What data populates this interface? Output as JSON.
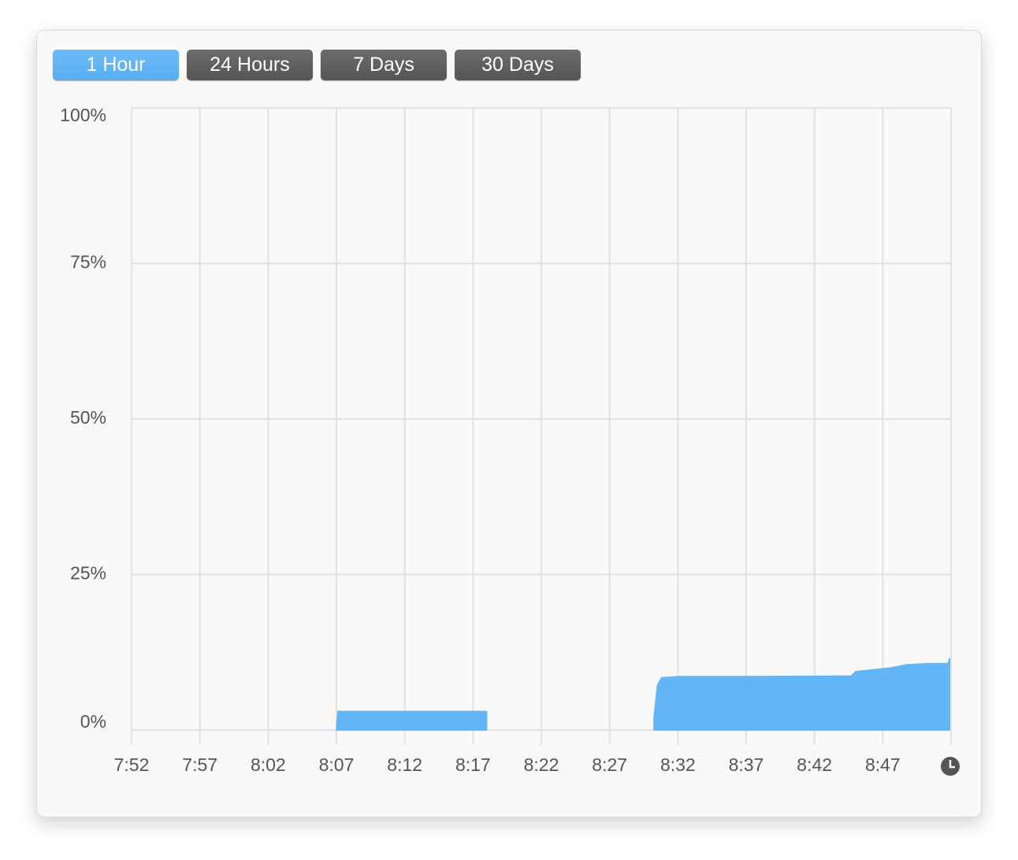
{
  "buttons": [
    "1 Hour",
    "24 Hours",
    "7 Days",
    "30 Days"
  ],
  "selected": 0,
  "chart_data": {
    "type": "area",
    "x": [
      487.0,
      487.1,
      498.0,
      498.0,
      null,
      510.25,
      510.5,
      510.8,
      512.0,
      517.75,
      524.7,
      525.0,
      527.6,
      528.7,
      530.4,
      531.8,
      531.9
    ],
    "series": [
      {
        "color": "#63b5f5",
        "values": [
          0,
          3,
          3,
          0,
          null,
          2,
          7.2,
          8.4,
          8.6,
          8.6,
          8.7,
          9.4,
          10,
          10.5,
          10.7,
          10.7,
          11.6
        ]
      }
    ],
    "xlim": [
      472,
      532
    ],
    "xticks": [
      {
        "value": 472,
        "label": "7:52"
      },
      {
        "value": 477,
        "label": "7:57"
      },
      {
        "value": 482,
        "label": "8:02"
      },
      {
        "value": 487,
        "label": "8:07"
      },
      {
        "value": 492,
        "label": "8:12"
      },
      {
        "value": 497,
        "label": "8:17"
      },
      {
        "value": 502,
        "label": "8:22"
      },
      {
        "value": 507,
        "label": "8:27"
      },
      {
        "value": 512,
        "label": "8:32"
      },
      {
        "value": 517,
        "label": "8:37"
      },
      {
        "value": 522,
        "label": "8:42"
      },
      {
        "value": 527,
        "label": "8:47"
      },
      532
    ],
    "ylim": [
      0,
      100
    ],
    "yticks": [
      {
        "value": 0,
        "label": "0%"
      },
      {
        "value": 25,
        "label": "25%"
      },
      {
        "value": 50,
        "label": "50%"
      },
      {
        "value": 75,
        "label": "75%"
      },
      {
        "value": 100,
        "label": "100%"
      }
    ],
    "grid": true
  }
}
